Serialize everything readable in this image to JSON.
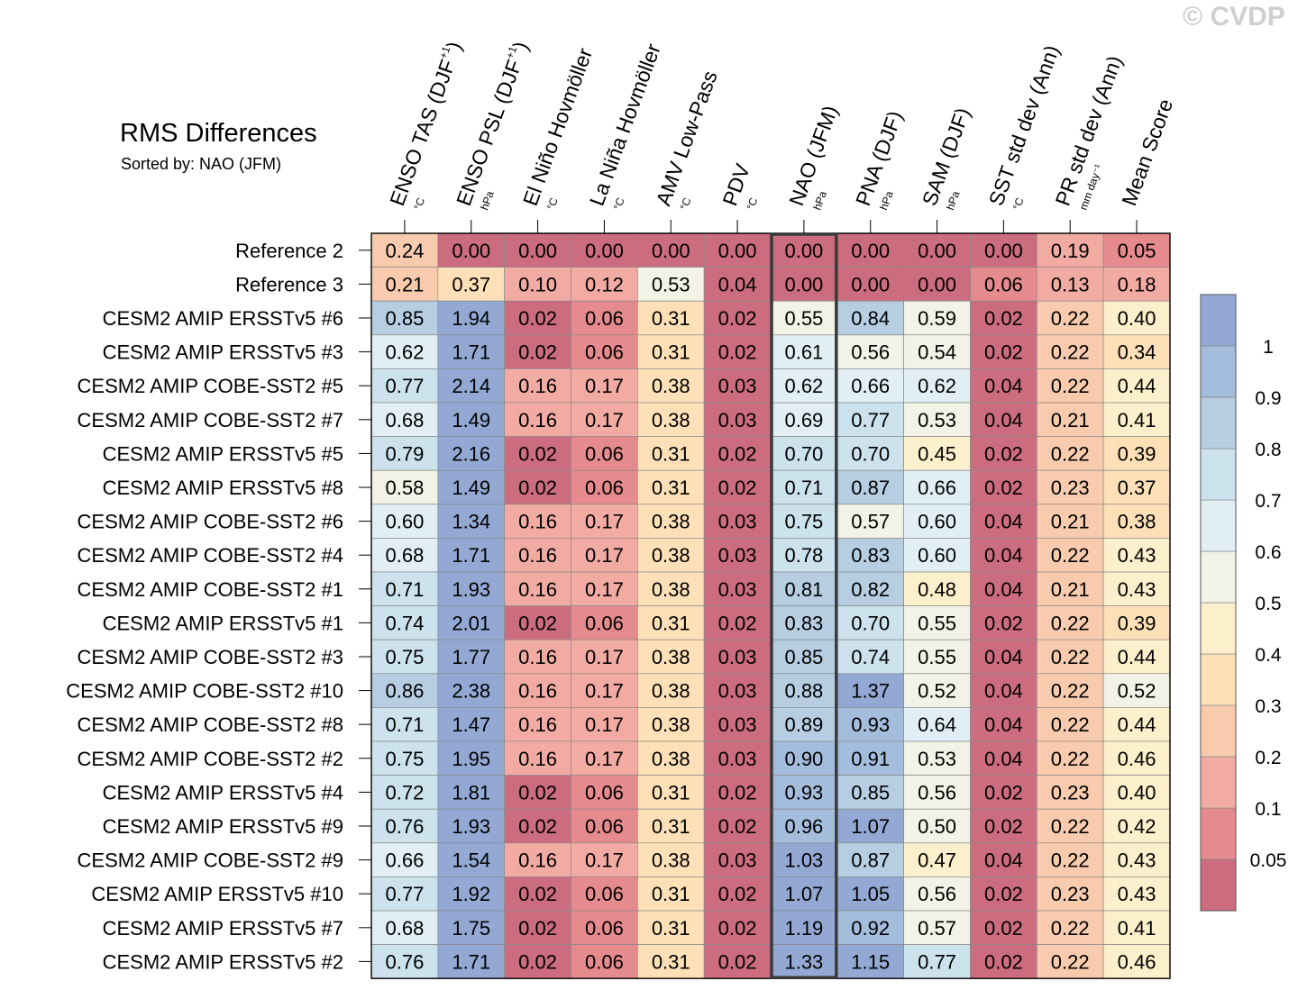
{
  "copyright": "© CVDP",
  "title": "RMS Differences",
  "subtitle": "Sorted by: NAO (JFM)",
  "chart_data": {
    "type": "heatmap",
    "title": "RMS Differences",
    "subtitle": "Sorted by: NAO (JFM)",
    "sorted_by": "NAO (JFM)",
    "highlight_column": "NAO (JFM)",
    "columns": [
      {
        "name": "ENSO TAS (DJF",
        "sup": "+1",
        "tail": ")",
        "unit": "°C"
      },
      {
        "name": "ENSO PSL (DJF",
        "sup": "+1",
        "tail": ")",
        "unit": "hPa"
      },
      {
        "name": "El Niño Hovmöller",
        "sup": "",
        "tail": "",
        "unit": "°C"
      },
      {
        "name": "La Niña Hovmöller",
        "sup": "",
        "tail": "",
        "unit": "°C"
      },
      {
        "name": "AMV Low-Pass",
        "sup": "",
        "tail": "",
        "unit": "°C"
      },
      {
        "name": "PDV",
        "sup": "",
        "tail": "",
        "unit": "°C"
      },
      {
        "name": "NAO (JFM)",
        "sup": "",
        "tail": "",
        "unit": "hPa"
      },
      {
        "name": "PNA (DJF)",
        "sup": "",
        "tail": "",
        "unit": "hPa"
      },
      {
        "name": "SAM (DJF)",
        "sup": "",
        "tail": "",
        "unit": "hPa"
      },
      {
        "name": "SST std dev (Ann)",
        "sup": "",
        "tail": "",
        "unit": "°C"
      },
      {
        "name": "PR std dev (Ann)",
        "sup": "",
        "tail": "",
        "unit": "mm day⁻¹"
      },
      {
        "name": "Mean Score",
        "sup": "",
        "tail": "",
        "unit": ""
      }
    ],
    "rows": [
      "Reference 2",
      "Reference 3",
      "CESM2 AMIP ERSSTv5 #6",
      "CESM2 AMIP ERSSTv5 #3",
      "CESM2 AMIP COBE-SST2 #5",
      "CESM2 AMIP COBE-SST2 #7",
      "CESM2 AMIP ERSSTv5 #5",
      "CESM2 AMIP ERSSTv5 #8",
      "CESM2 AMIP COBE-SST2 #6",
      "CESM2 AMIP COBE-SST2 #4",
      "CESM2 AMIP COBE-SST2 #1",
      "CESM2 AMIP ERSSTv5 #1",
      "CESM2 AMIP COBE-SST2 #3",
      "CESM2 AMIP COBE-SST2 #10",
      "CESM2 AMIP COBE-SST2 #8",
      "CESM2 AMIP COBE-SST2 #2",
      "CESM2 AMIP ERSSTv5 #4",
      "CESM2 AMIP ERSSTv5 #9",
      "CESM2 AMIP COBE-SST2 #9",
      "CESM2 AMIP ERSSTv5 #10",
      "CESM2 AMIP ERSSTv5 #7",
      "CESM2 AMIP ERSSTv5 #2"
    ],
    "values": [
      [
        "0.24",
        "0.00",
        "0.00",
        "0.00",
        "0.00",
        "0.00",
        "0.00",
        "0.00",
        "0.00",
        "0.00",
        "0.19",
        "0.05"
      ],
      [
        "0.21",
        "0.37",
        "0.10",
        "0.12",
        "0.53",
        "0.04",
        "0.00",
        "0.00",
        "0.00",
        "0.06",
        "0.13",
        "0.18"
      ],
      [
        "0.85",
        "1.94",
        "0.02",
        "0.06",
        "0.31",
        "0.02",
        "0.55",
        "0.84",
        "0.59",
        "0.02",
        "0.22",
        "0.40"
      ],
      [
        "0.62",
        "1.71",
        "0.02",
        "0.06",
        "0.31",
        "0.02",
        "0.61",
        "0.56",
        "0.54",
        "0.02",
        "0.22",
        "0.34"
      ],
      [
        "0.77",
        "2.14",
        "0.16",
        "0.17",
        "0.38",
        "0.03",
        "0.62",
        "0.66",
        "0.62",
        "0.04",
        "0.22",
        "0.44"
      ],
      [
        "0.68",
        "1.49",
        "0.16",
        "0.17",
        "0.38",
        "0.03",
        "0.69",
        "0.77",
        "0.53",
        "0.04",
        "0.21",
        "0.41"
      ],
      [
        "0.79",
        "2.16",
        "0.02",
        "0.06",
        "0.31",
        "0.02",
        "0.70",
        "0.70",
        "0.45",
        "0.02",
        "0.22",
        "0.39"
      ],
      [
        "0.58",
        "1.49",
        "0.02",
        "0.06",
        "0.31",
        "0.02",
        "0.71",
        "0.87",
        "0.66",
        "0.02",
        "0.23",
        "0.37"
      ],
      [
        "0.60",
        "1.34",
        "0.16",
        "0.17",
        "0.38",
        "0.03",
        "0.75",
        "0.57",
        "0.60",
        "0.04",
        "0.21",
        "0.38"
      ],
      [
        "0.68",
        "1.71",
        "0.16",
        "0.17",
        "0.38",
        "0.03",
        "0.78",
        "0.83",
        "0.60",
        "0.04",
        "0.22",
        "0.43"
      ],
      [
        "0.71",
        "1.93",
        "0.16",
        "0.17",
        "0.38",
        "0.03",
        "0.81",
        "0.82",
        "0.48",
        "0.04",
        "0.21",
        "0.43"
      ],
      [
        "0.74",
        "2.01",
        "0.02",
        "0.06",
        "0.31",
        "0.02",
        "0.83",
        "0.70",
        "0.55",
        "0.02",
        "0.22",
        "0.39"
      ],
      [
        "0.75",
        "1.77",
        "0.16",
        "0.17",
        "0.38",
        "0.03",
        "0.85",
        "0.74",
        "0.55",
        "0.04",
        "0.22",
        "0.44"
      ],
      [
        "0.86",
        "2.38",
        "0.16",
        "0.17",
        "0.38",
        "0.03",
        "0.88",
        "1.37",
        "0.52",
        "0.04",
        "0.22",
        "0.52"
      ],
      [
        "0.71",
        "1.47",
        "0.16",
        "0.17",
        "0.38",
        "0.03",
        "0.89",
        "0.93",
        "0.64",
        "0.04",
        "0.22",
        "0.44"
      ],
      [
        "0.75",
        "1.95",
        "0.16",
        "0.17",
        "0.38",
        "0.03",
        "0.90",
        "0.91",
        "0.53",
        "0.04",
        "0.22",
        "0.46"
      ],
      [
        "0.72",
        "1.81",
        "0.02",
        "0.06",
        "0.31",
        "0.02",
        "0.93",
        "0.85",
        "0.56",
        "0.02",
        "0.23",
        "0.40"
      ],
      [
        "0.76",
        "1.93",
        "0.02",
        "0.06",
        "0.31",
        "0.02",
        "0.96",
        "1.07",
        "0.50",
        "0.02",
        "0.22",
        "0.42"
      ],
      [
        "0.66",
        "1.54",
        "0.16",
        "0.17",
        "0.38",
        "0.03",
        "1.03",
        "0.87",
        "0.47",
        "0.04",
        "0.22",
        "0.43"
      ],
      [
        "0.77",
        "1.92",
        "0.02",
        "0.06",
        "0.31",
        "0.02",
        "1.07",
        "1.05",
        "0.56",
        "0.02",
        "0.23",
        "0.43"
      ],
      [
        "0.68",
        "1.75",
        "0.02",
        "0.06",
        "0.31",
        "0.02",
        "1.19",
        "0.92",
        "0.57",
        "0.02",
        "0.22",
        "0.41"
      ],
      [
        "0.76",
        "1.71",
        "0.02",
        "0.06",
        "0.31",
        "0.02",
        "1.33",
        "1.15",
        "0.77",
        "0.02",
        "0.22",
        "0.46"
      ]
    ],
    "colorbar": {
      "levels": [
        "0.05",
        "0.1",
        "0.2",
        "0.3",
        "0.4",
        "0.5",
        "0.6",
        "0.7",
        "0.8",
        "0.9",
        "1"
      ],
      "colors": [
        "#cc6c7f",
        "#e58a8d",
        "#f2aba3",
        "#f8cbae",
        "#fde0b8",
        "#fcefcb",
        "#f2f2e6",
        "#e1eff4",
        "#cce2ec",
        "#b6cde2",
        "#a5bddc",
        "#93a9d3"
      ]
    }
  }
}
